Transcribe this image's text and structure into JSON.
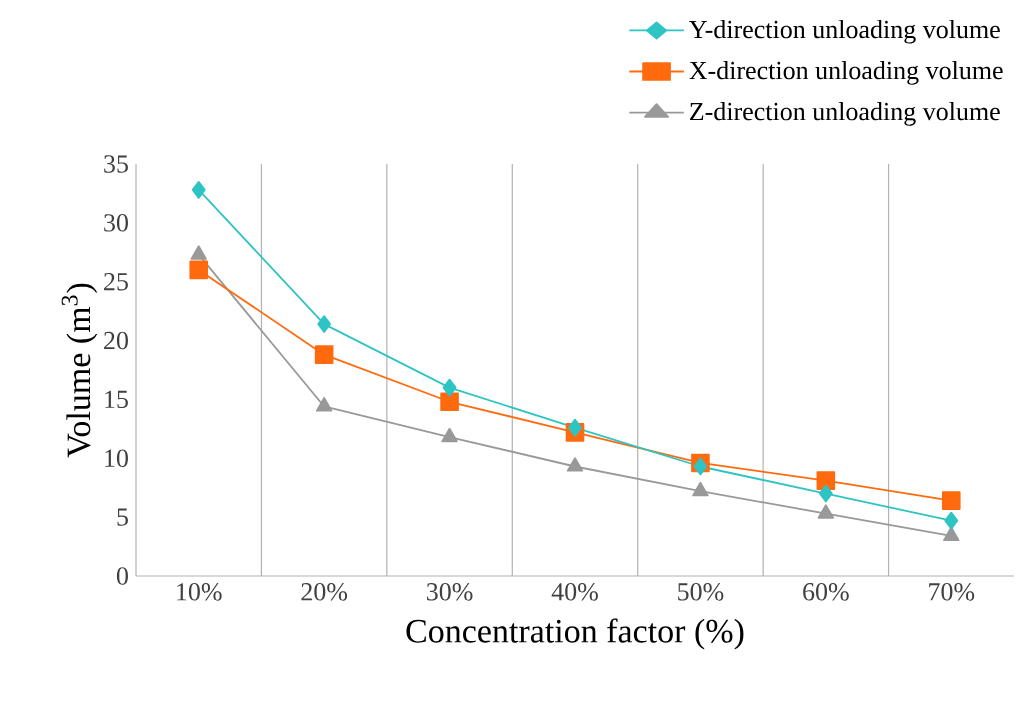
{
  "chart_data": {
    "type": "line",
    "xlabel": "Concentration factor (%)",
    "ylabel": "Volume (m$^{3}$)",
    "categories": [
      "10%",
      "20%",
      "30%",
      "40%",
      "50%",
      "60%",
      "70%"
    ],
    "series": [
      {
        "name": "Y-direction unloading volume",
        "color": "#2ec4c4",
        "marker": "diamond",
        "values": [
          32.8,
          21.4,
          16.0,
          12.6,
          9.3,
          7.0,
          4.7
        ]
      },
      {
        "name": "X-direction unloading volume",
        "color": "#ff6a0e",
        "marker": "square",
        "values": [
          26.0,
          18.8,
          14.8,
          12.2,
          9.6,
          8.1,
          6.4
        ]
      },
      {
        "name": "Z-direction unloading volume",
        "color": "#999999",
        "marker": "triangle",
        "values": [
          27.3,
          14.4,
          11.8,
          9.3,
          7.2,
          5.3,
          3.4
        ]
      }
    ],
    "ylim": [
      0,
      35
    ],
    "yticks": [
      0,
      5,
      10,
      15,
      20,
      25,
      30,
      35
    ],
    "grid": "x",
    "legend": "top right"
  }
}
